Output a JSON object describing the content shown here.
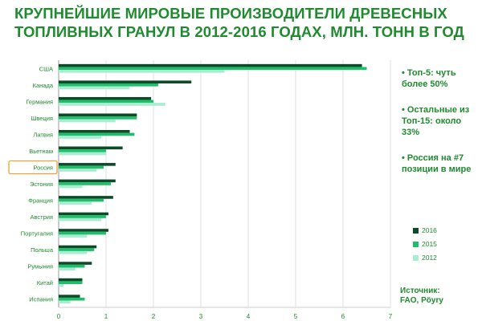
{
  "title_line1": "КРУПНЕЙШИЕ МИРОВЫЕ ПРОИЗВОДИТЕЛИ ДРЕВЕСНЫХ",
  "title_line2": "ТОПЛИВНЫХ ГРАНУЛ В 2012-2016 ГОДАХ, МЛН. ТОНН В ГОД",
  "notes": [
    "• Топ-5: чуть более 50%",
    "• Остальные из Топ-15: около 33%",
    "• Россия на #7 позиции в мире"
  ],
  "source_label": "Источник:",
  "source_text": "FAO, Pöyry",
  "highlighted_category": "Россия",
  "colors": {
    "2016": "#0d4a2a",
    "2015": "#1fbf6a",
    "2012": "#a8ecd2",
    "text": "#1f8a2f",
    "highlight_border": "#e8a43a",
    "axis": "#999999"
  },
  "chart_data": {
    "type": "bar",
    "orientation": "horizontal",
    "title": "КРУПНЕЙШИЕ МИРОВЫЕ ПРОИЗВОДИТЕЛИ ДРЕВЕСНЫХ ТОПЛИВНЫХ ГРАНУЛ В 2012-2016 ГОДАХ, МЛН. ТОНН В ГОД",
    "xlabel": "",
    "ylabel": "",
    "xlim": [
      0,
      7
    ],
    "xticks": [
      0,
      1,
      2,
      3,
      4,
      5,
      6,
      7
    ],
    "grid": true,
    "legend_position": "bottom-right",
    "categories": [
      "США",
      "Канада",
      "Германия",
      "Швеция",
      "Латвия",
      "Вьетнам",
      "Россия",
      "Эстония",
      "Франция",
      "Австрия",
      "Португалия",
      "Польша",
      "Румыния",
      "Китай",
      "Испания"
    ],
    "series": [
      {
        "name": "2016",
        "values": [
          6.4,
          2.8,
          1.95,
          1.65,
          1.5,
          1.35,
          1.2,
          1.2,
          1.15,
          1.05,
          1.05,
          0.8,
          0.7,
          0.5,
          0.45
        ]
      },
      {
        "name": "2015",
        "values": [
          6.5,
          2.1,
          2.0,
          1.65,
          1.6,
          1.0,
          0.95,
          1.1,
          0.95,
          1.0,
          1.0,
          0.75,
          0.55,
          0.5,
          0.55
        ]
      },
      {
        "name": "2012",
        "values": [
          3.5,
          1.5,
          2.25,
          1.2,
          0.9,
          1.0,
          0.8,
          0.5,
          0.7,
          0.9,
          0.6,
          0.6,
          0.35,
          0.1,
          0.25
        ]
      }
    ]
  }
}
